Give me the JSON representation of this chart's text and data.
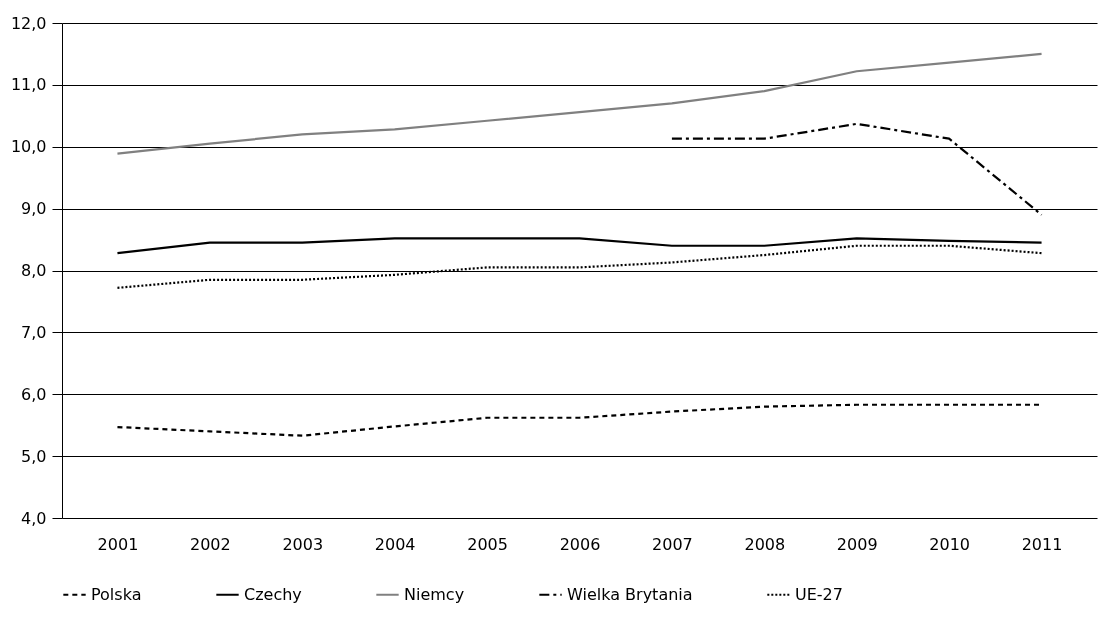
{
  "chart_data": {
    "type": "line",
    "categories": [
      "2001",
      "2002",
      "2003",
      "2004",
      "2005",
      "2006",
      "2007",
      "2008",
      "2009",
      "2010",
      "2011"
    ],
    "series": [
      {
        "name": "Polska",
        "color": "#000000",
        "line_style": "dashed",
        "values": [
          5.47,
          5.4,
          5.33,
          5.48,
          5.62,
          5.62,
          5.72,
          5.8,
          5.83,
          5.83,
          5.83
        ]
      },
      {
        "name": "Czechy",
        "color": "#000000",
        "line_style": "solid",
        "values": [
          8.28,
          8.45,
          8.45,
          8.52,
          8.52,
          8.52,
          8.4,
          8.4,
          8.52,
          8.48,
          8.45
        ]
      },
      {
        "name": "Niemcy",
        "color": "#808080",
        "line_style": "solid",
        "values": [
          9.89,
          10.05,
          10.2,
          10.28,
          10.42,
          10.56,
          10.7,
          10.9,
          11.22,
          11.36,
          11.5
        ]
      },
      {
        "name": "Wielka Brytania",
        "color": "#000000",
        "line_style": "dashdot",
        "values": [
          null,
          null,
          null,
          null,
          null,
          null,
          10.13,
          10.13,
          10.37,
          10.13,
          8.9
        ]
      },
      {
        "name": "UE-27",
        "color": "#000000",
        "line_style": "dotted",
        "values": [
          7.72,
          7.85,
          7.85,
          7.93,
          8.05,
          8.05,
          8.13,
          8.25,
          8.4,
          8.4,
          8.28
        ]
      }
    ],
    "ylim": [
      4,
      12
    ],
    "yticks": [
      {
        "value": 4,
        "label": "4,0"
      },
      {
        "value": 5,
        "label": "5,0"
      },
      {
        "value": 6,
        "label": "6,0"
      },
      {
        "value": 7,
        "label": "7,0"
      },
      {
        "value": 8,
        "label": "8,0"
      },
      {
        "value": 9,
        "label": "9,0"
      },
      {
        "value": 10,
        "label": "10,0"
      },
      {
        "value": 11,
        "label": "11,0"
      },
      {
        "value": 12,
        "label": "12,0"
      }
    ],
    "grid": "y",
    "legend": "bottom",
    "marker": "none"
  }
}
